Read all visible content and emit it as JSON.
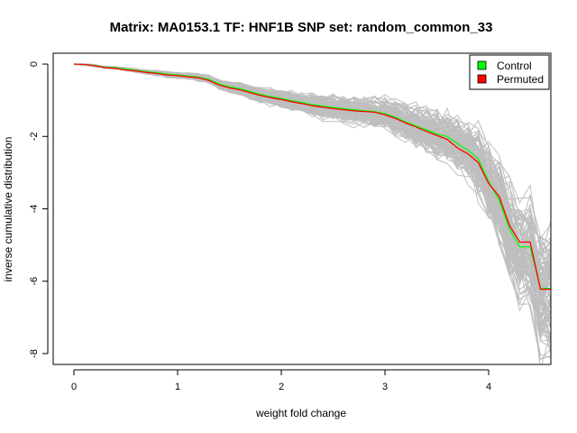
{
  "chart_data": {
    "type": "line",
    "title": "Matrix: MA0153.1 TF: HNF1B SNP set: random_common_33",
    "xlabel": "weight fold change",
    "ylabel": "inverse cumulative distribution",
    "xlim": [
      -0.2,
      4.6
    ],
    "ylim": [
      -8.3,
      0.3
    ],
    "x_ticks": [
      0,
      1,
      2,
      3,
      4
    ],
    "x_tick_labels": [
      "0",
      "1",
      "2",
      "3",
      "4"
    ],
    "y_ticks": [
      0,
      -2,
      -4,
      -6,
      -8
    ],
    "y_tick_labels": [
      "0",
      "-2",
      "-4",
      "-6",
      "-8"
    ],
    "grid": false,
    "legend_position": "top-right",
    "legend": [
      {
        "label": "Control",
        "color": "#00ff00"
      },
      {
        "label": "Permuted",
        "color": "#ff0000"
      }
    ],
    "background_series_color": "#bebebe",
    "background_series_count": 100,
    "series": [
      {
        "name": "Control",
        "color": "#00ff00",
        "x": [
          0,
          0.1,
          0.2,
          0.3,
          0.4,
          0.5,
          0.6,
          0.7,
          0.8,
          0.9,
          1.0,
          1.1,
          1.2,
          1.3,
          1.4,
          1.5,
          1.6,
          1.7,
          1.8,
          1.9,
          2.0,
          2.1,
          2.2,
          2.3,
          2.4,
          2.5,
          2.6,
          2.7,
          2.8,
          2.9,
          3.0,
          3.1,
          3.2,
          3.3,
          3.4,
          3.5,
          3.6,
          3.7,
          3.8,
          3.9,
          4.0,
          4.1,
          4.2,
          4.3,
          4.4,
          4.5,
          4.6
        ],
        "y": [
          0,
          -0.01,
          -0.04,
          -0.09,
          -0.1,
          -0.14,
          -0.17,
          -0.21,
          -0.24,
          -0.28,
          -0.3,
          -0.33,
          -0.36,
          -0.42,
          -0.55,
          -0.63,
          -0.68,
          -0.76,
          -0.84,
          -0.9,
          -0.95,
          -1.01,
          -1.06,
          -1.12,
          -1.16,
          -1.2,
          -1.23,
          -1.26,
          -1.29,
          -1.31,
          -1.37,
          -1.47,
          -1.6,
          -1.71,
          -1.82,
          -1.93,
          -2.0,
          -2.2,
          -2.38,
          -2.62,
          -3.25,
          -3.75,
          -4.55,
          -5.05,
          -5.05,
          -6.2,
          -6.2
        ]
      },
      {
        "name": "Permuted",
        "color": "#ff0000",
        "x": [
          0,
          0.1,
          0.2,
          0.3,
          0.4,
          0.5,
          0.6,
          0.7,
          0.8,
          0.9,
          1.0,
          1.1,
          1.2,
          1.3,
          1.4,
          1.5,
          1.6,
          1.7,
          1.8,
          1.9,
          2.0,
          2.1,
          2.2,
          2.3,
          2.4,
          2.5,
          2.6,
          2.7,
          2.8,
          2.9,
          3.0,
          3.1,
          3.2,
          3.3,
          3.4,
          3.5,
          3.6,
          3.7,
          3.8,
          3.9,
          4.0,
          4.1,
          4.2,
          4.3,
          4.4,
          4.5,
          4.6
        ],
        "y": [
          0,
          -0.01,
          -0.05,
          -0.1,
          -0.12,
          -0.16,
          -0.19,
          -0.23,
          -0.26,
          -0.3,
          -0.32,
          -0.35,
          -0.38,
          -0.45,
          -0.58,
          -0.66,
          -0.71,
          -0.79,
          -0.87,
          -0.93,
          -0.98,
          -1.04,
          -1.09,
          -1.15,
          -1.19,
          -1.23,
          -1.26,
          -1.29,
          -1.31,
          -1.33,
          -1.4,
          -1.5,
          -1.63,
          -1.74,
          -1.86,
          -1.97,
          -2.08,
          -2.32,
          -2.48,
          -2.72,
          -3.3,
          -3.65,
          -4.45,
          -4.92,
          -4.92,
          -6.22,
          -6.22
        ]
      }
    ]
  }
}
